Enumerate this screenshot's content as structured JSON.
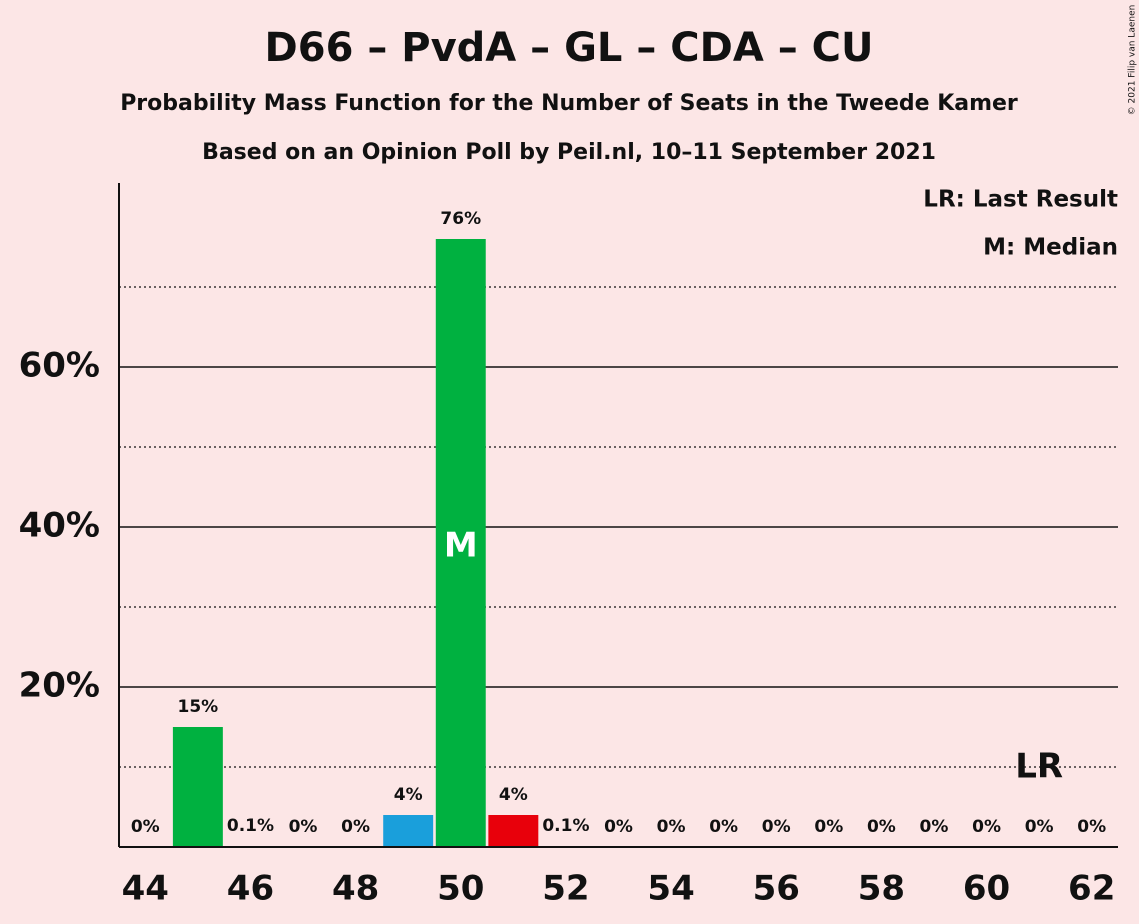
{
  "chart_data": {
    "type": "bar",
    "title": "D66 – PvdA – GL – CDA – CU",
    "subtitle": "Probability Mass Function for the Number of Seats in the Tweede Kamer",
    "subtitle2": "Based on an Opinion Poll by Peil.nl, 10–11 September 2021",
    "copyright": "© 2021 Filip van Laenen",
    "legend": [
      "LR: Last Result",
      "M: Median"
    ],
    "x": [
      44,
      45,
      46,
      47,
      48,
      49,
      50,
      51,
      52,
      53,
      54,
      55,
      56,
      57,
      58,
      59,
      60,
      61,
      62
    ],
    "values": [
      0,
      15,
      0.1,
      0,
      0,
      4,
      76,
      4,
      0.1,
      0,
      0,
      0,
      0,
      0,
      0,
      0,
      0,
      0,
      0
    ],
    "value_labels": [
      "0%",
      "15%",
      "0.1%",
      "0%",
      "0%",
      "4%",
      "76%",
      "4%",
      "0.1%",
      "0%",
      "0%",
      "0%",
      "0%",
      "0%",
      "0%",
      "0%",
      "0%",
      "0%",
      "0%"
    ],
    "colors": [
      "#00b140",
      "#00b140",
      "#00b140",
      "#00b140",
      "#00b140",
      "#1a9fdb",
      "#00b140",
      "#e8000b",
      "#00b140",
      "#00b140",
      "#00b140",
      "#00b140",
      "#00b140",
      "#00b140",
      "#00b140",
      "#00b140",
      "#00b140",
      "#00b140",
      "#00b140"
    ],
    "xlim": [
      43.5,
      62.5
    ],
    "xticks": [
      44,
      46,
      48,
      50,
      52,
      54,
      56,
      58,
      60,
      62
    ],
    "ylim": [
      0,
      83
    ],
    "yticks": [
      {
        "value": 20,
        "label": "20%"
      },
      {
        "value": 40,
        "label": "40%"
      },
      {
        "value": 60,
        "label": "60%"
      }
    ],
    "yminorticks": [
      10,
      30,
      50,
      70
    ],
    "grid": true,
    "annotations": {
      "median": {
        "x": 50,
        "label": "M"
      },
      "last_result": {
        "x": 61,
        "label": "LR"
      }
    }
  }
}
